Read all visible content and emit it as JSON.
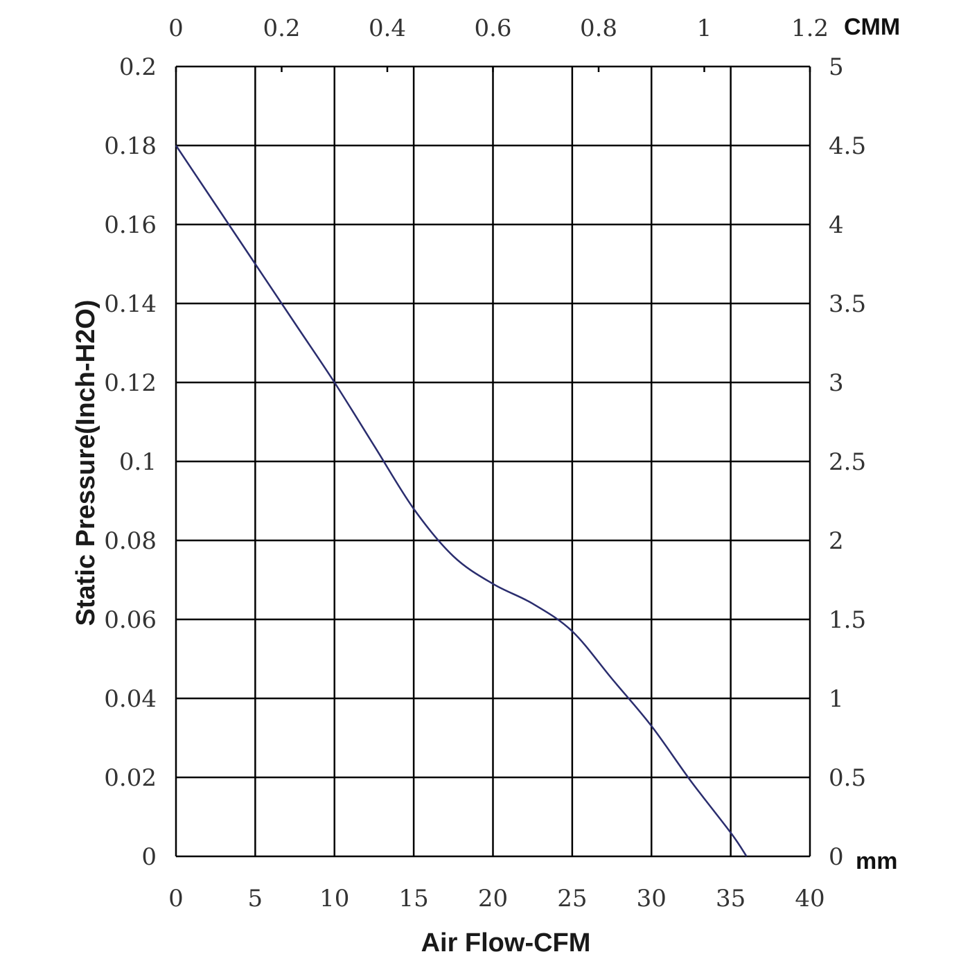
{
  "chart_data": {
    "type": "line",
    "xlabel": "Air Flow-CFM",
    "ylabel": "Static Pressure(Inch-H2O)",
    "top_axis_unit": "CMM",
    "right_axis_unit": "mm",
    "xlim": [
      0,
      40
    ],
    "ylim": [
      0,
      0.2
    ],
    "top_xlim": [
      0,
      1.2
    ],
    "right_ylim": [
      0,
      5
    ],
    "grid": true,
    "x_ticks": [
      "0",
      "5",
      "10",
      "15",
      "20",
      "25",
      "30",
      "35",
      "40"
    ],
    "y_ticks": [
      "0",
      "0.02",
      "0.04",
      "0.06",
      "0.08",
      "0.1",
      "0.12",
      "0.14",
      "0.16",
      "0.18",
      "0.2"
    ],
    "top_ticks": [
      "0",
      "0.2",
      "0.4",
      "0.6",
      "0.8",
      "1",
      "1.2"
    ],
    "right_ticks": [
      "0",
      "0.5",
      "1",
      "1.5",
      "2",
      "2.5",
      "3",
      "3.5",
      "4",
      "4.5",
      "5"
    ],
    "series": [
      {
        "color": "#2a2d6e",
        "x": [
          0,
          2.5,
          5,
          7.5,
          10,
          12.5,
          15,
          17.5,
          20,
          22.5,
          25,
          27.5,
          30,
          32.5,
          35,
          36
        ],
        "y": [
          0.18,
          0.165,
          0.15,
          0.135,
          0.12,
          0.104,
          0.088,
          0.076,
          0.069,
          0.064,
          0.057,
          0.045,
          0.033,
          0.019,
          0.006,
          0
        ]
      }
    ]
  }
}
